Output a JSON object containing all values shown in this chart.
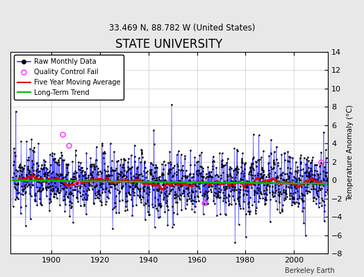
{
  "title": "STATE UNIVERSITY",
  "subtitle": "33.469 N, 88.782 W (United States)",
  "credit": "Berkeley Earth",
  "ylabel": "Temperature Anomaly (°C)",
  "ylim": [
    -8,
    14
  ],
  "yticks": [
    -8,
    -6,
    -4,
    -2,
    0,
    2,
    4,
    6,
    8,
    10,
    12,
    14
  ],
  "year_start": 1884,
  "year_end": 2013,
  "seed": 17,
  "bg_color": "#e8e8e8",
  "plot_bg": "#ffffff",
  "line_color": "#3333ff",
  "line_color_light": "#9999ff",
  "ma_color": "#dd0000",
  "trend_color": "#00bb00",
  "qc_color": "#ff44ff",
  "legend_items": [
    "Raw Monthly Data",
    "Quality Control Fail",
    "Five Year Moving Average",
    "Long-Term Trend"
  ]
}
